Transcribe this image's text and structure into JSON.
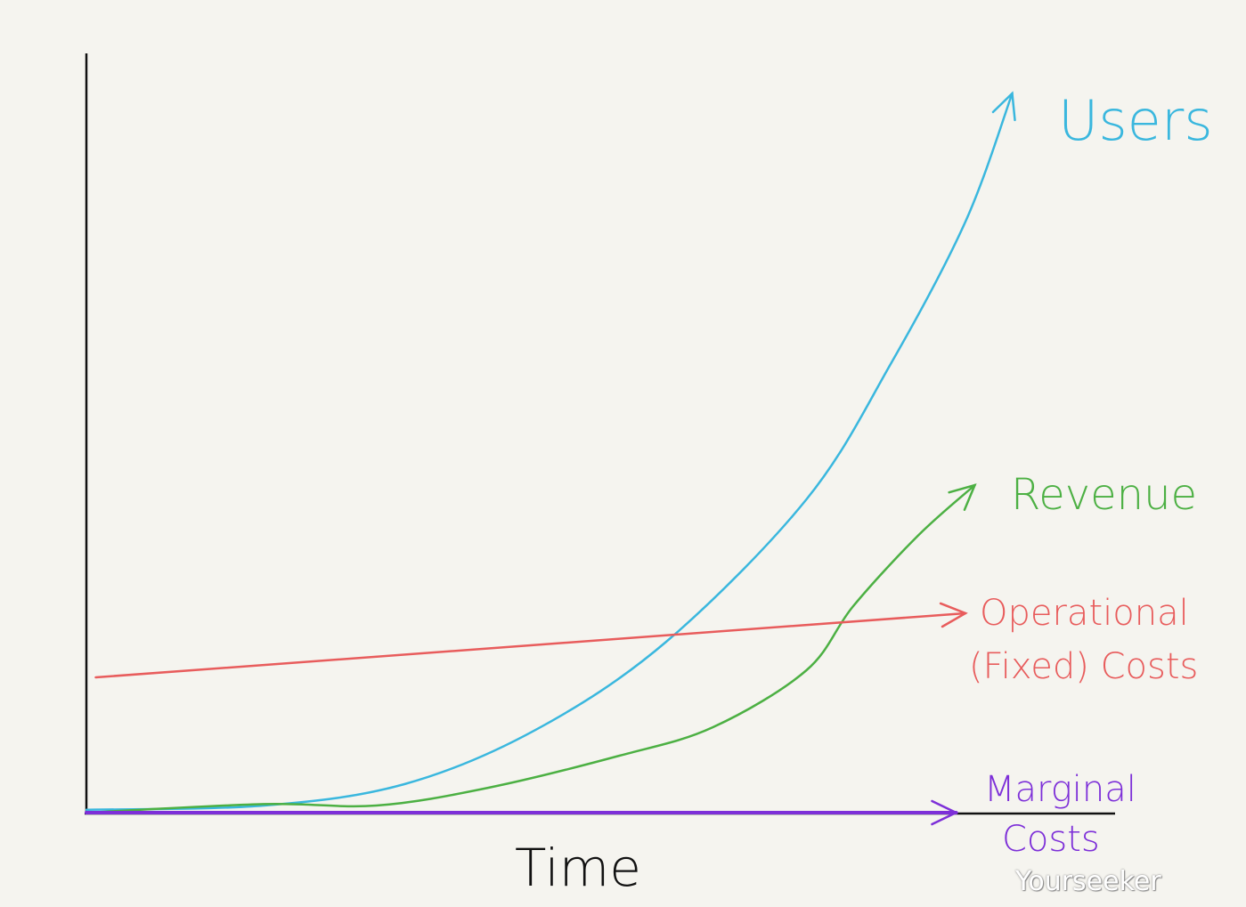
{
  "chart_data": {
    "type": "line",
    "title": "",
    "xlabel": "Time",
    "ylabel": "",
    "xlim": [
      0,
      10.5
    ],
    "ylim": [
      0,
      105
    ],
    "grid": false,
    "legend": "inline labels at line ends",
    "series": [
      {
        "name": "Users",
        "color": "#3ab7de",
        "x": [
          0,
          1.9,
          3.4,
          4.8,
          6.2,
          7.7,
          8.6,
          9.4,
          9.9
        ],
        "y": [
          0.4,
          1,
          4,
          11.6,
          24,
          44,
          63,
          83,
          101
        ]
      },
      {
        "name": "Revenue",
        "color": "#4cb043",
        "x": [
          0,
          1.9,
          3.1,
          4.3,
          5.7,
          6.7,
          7.7,
          8.2,
          8.9,
          9.5
        ],
        "y": [
          0,
          1.2,
          1,
          3.5,
          8,
          12,
          20,
          29,
          39,
          46
        ]
      },
      {
        "name": "Operational (Fixed) Costs",
        "color": "#e85c5c",
        "x": [
          0.1,
          9.4
        ],
        "y": [
          19,
          28
        ]
      },
      {
        "name": "Marginal Costs",
        "color": "#7d2fd8",
        "x": [
          0,
          9.3
        ],
        "y": [
          0,
          0
        ]
      }
    ],
    "labels": {
      "users": "Users",
      "revenue": "Revenue",
      "operational_1": "Operational",
      "operational_2": "(Fixed) Costs",
      "marginal_1": "Marginal",
      "marginal_2": "Costs"
    }
  },
  "watermark": "Yourseeker"
}
